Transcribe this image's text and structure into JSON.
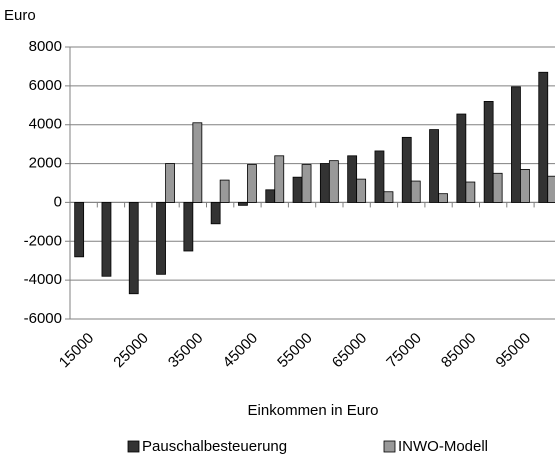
{
  "chart_data": {
    "type": "bar",
    "y_label": "Euro",
    "x_label": "Einkommen in Euro",
    "categories": [
      "15000",
      null,
      "25000",
      null,
      "35000",
      null,
      "45000",
      null,
      "55000",
      null,
      "65000",
      null,
      "75000",
      null,
      "85000",
      null,
      "95000",
      null
    ],
    "series": [
      {
        "name": "Pauschalbesteuerung",
        "color": "#333333",
        "values": [
          -2800,
          -3800,
          -4700,
          -3700,
          -2500,
          -1100,
          -150,
          650,
          1300,
          2000,
          2400,
          2650,
          3350,
          3750,
          4550,
          5200,
          5950,
          6700
        ]
      },
      {
        "name": "INWO-Modell",
        "color": "#999999",
        "values": [
          null,
          null,
          null,
          2000,
          4100,
          1150,
          1950,
          2400,
          1950,
          2150,
          1200,
          550,
          1100,
          450,
          1050,
          1500,
          1700,
          1350
        ]
      }
    ],
    "ylim": [
      -6000,
      8000
    ],
    "yticks": [
      8000,
      6000,
      4000,
      2000,
      0,
      -2000,
      -4000,
      -6000
    ],
    "grid": true
  }
}
